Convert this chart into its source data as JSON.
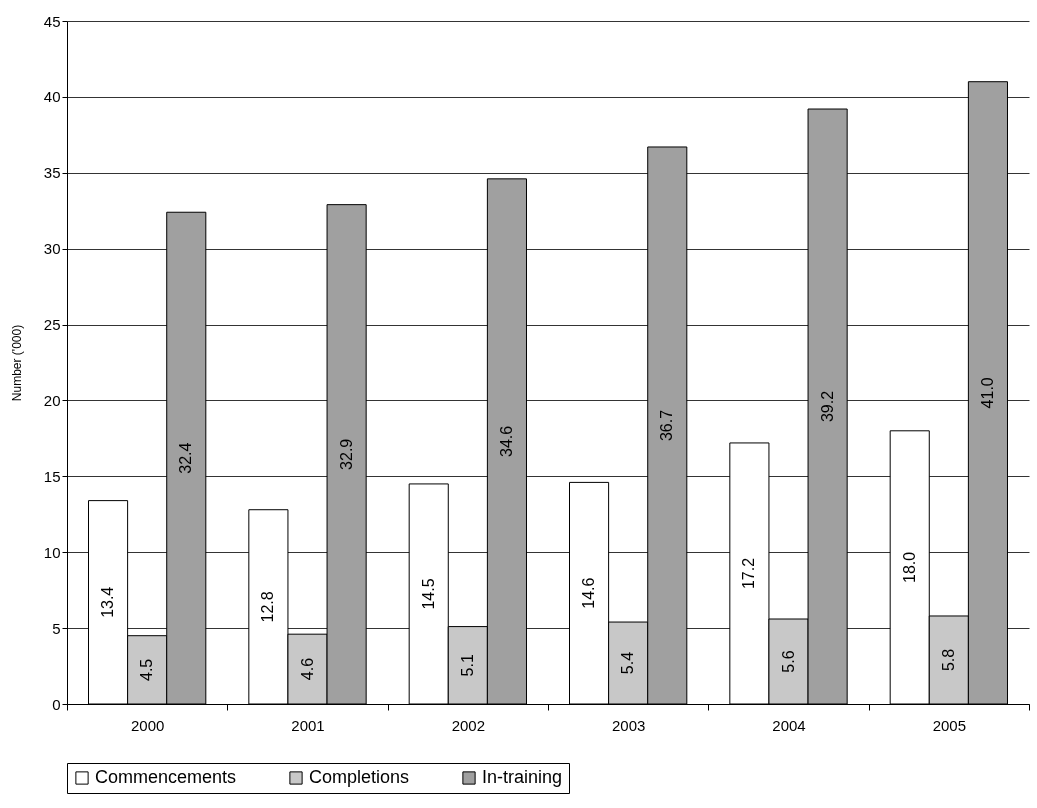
{
  "chart_data": {
    "type": "bar",
    "ylabel": "Number ('000)",
    "categories": [
      "2000",
      "2001",
      "2002",
      "2003",
      "2004",
      "2005"
    ],
    "series": [
      {
        "name": "Commencements",
        "color": "#ffffff",
        "values": [
          13.4,
          12.8,
          14.5,
          14.6,
          17.2,
          18.0
        ],
        "value_labels": [
          "13.4",
          "12.8",
          "14.5",
          "14.6",
          "17.2",
          "18.0"
        ]
      },
      {
        "name": "Completions",
        "color": "#c8c8c8",
        "values": [
          4.5,
          4.6,
          5.1,
          5.4,
          5.6,
          5.8
        ],
        "value_labels": [
          "4.5",
          "4.6",
          "5.1",
          "5.4",
          "5.6",
          "5.8"
        ]
      },
      {
        "name": "In-training",
        "color": "#a0a0a0",
        "values": [
          32.4,
          32.9,
          34.6,
          36.7,
          39.2,
          41.0
        ],
        "value_labels": [
          "32.4",
          "32.9",
          "34.6",
          "36.7",
          "39.2",
          "41.0"
        ]
      }
    ],
    "ylim": [
      0,
      45
    ],
    "yticks": [
      0,
      5,
      10,
      15,
      20,
      25,
      30,
      35,
      40,
      45
    ],
    "grid": "y",
    "legend": "bottom"
  }
}
